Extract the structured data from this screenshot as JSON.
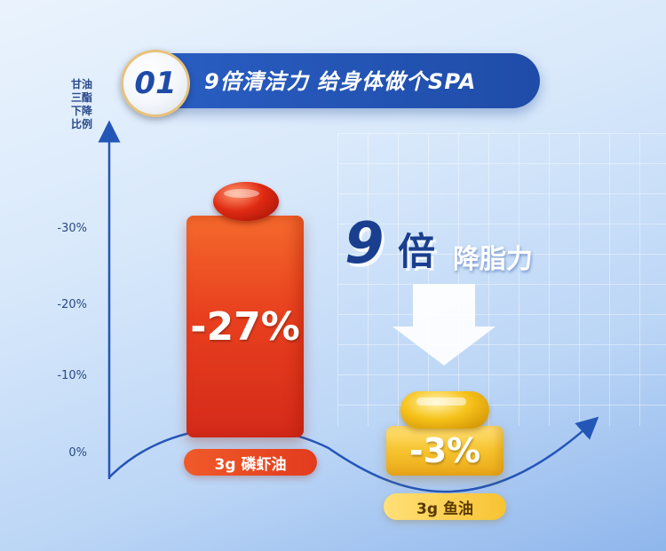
{
  "header": {
    "badge": "01",
    "title": "9倍清洁力 给身体做个SPA"
  },
  "chart_data": {
    "type": "bar",
    "ylabel": "甘油三酯下降比例",
    "yticks": [
      "-30%",
      "-20%",
      "-10%",
      "0%"
    ],
    "categories": [
      "3g 磷虾油",
      "3g 鱼油"
    ],
    "values": [
      -27,
      -3
    ],
    "value_labels": [
      "-27%",
      "-3%"
    ],
    "colors": [
      "#e8401e",
      "#f6c32e"
    ]
  },
  "callout": {
    "multiplier": "9",
    "unit": "倍",
    "desc": "降脂力"
  }
}
